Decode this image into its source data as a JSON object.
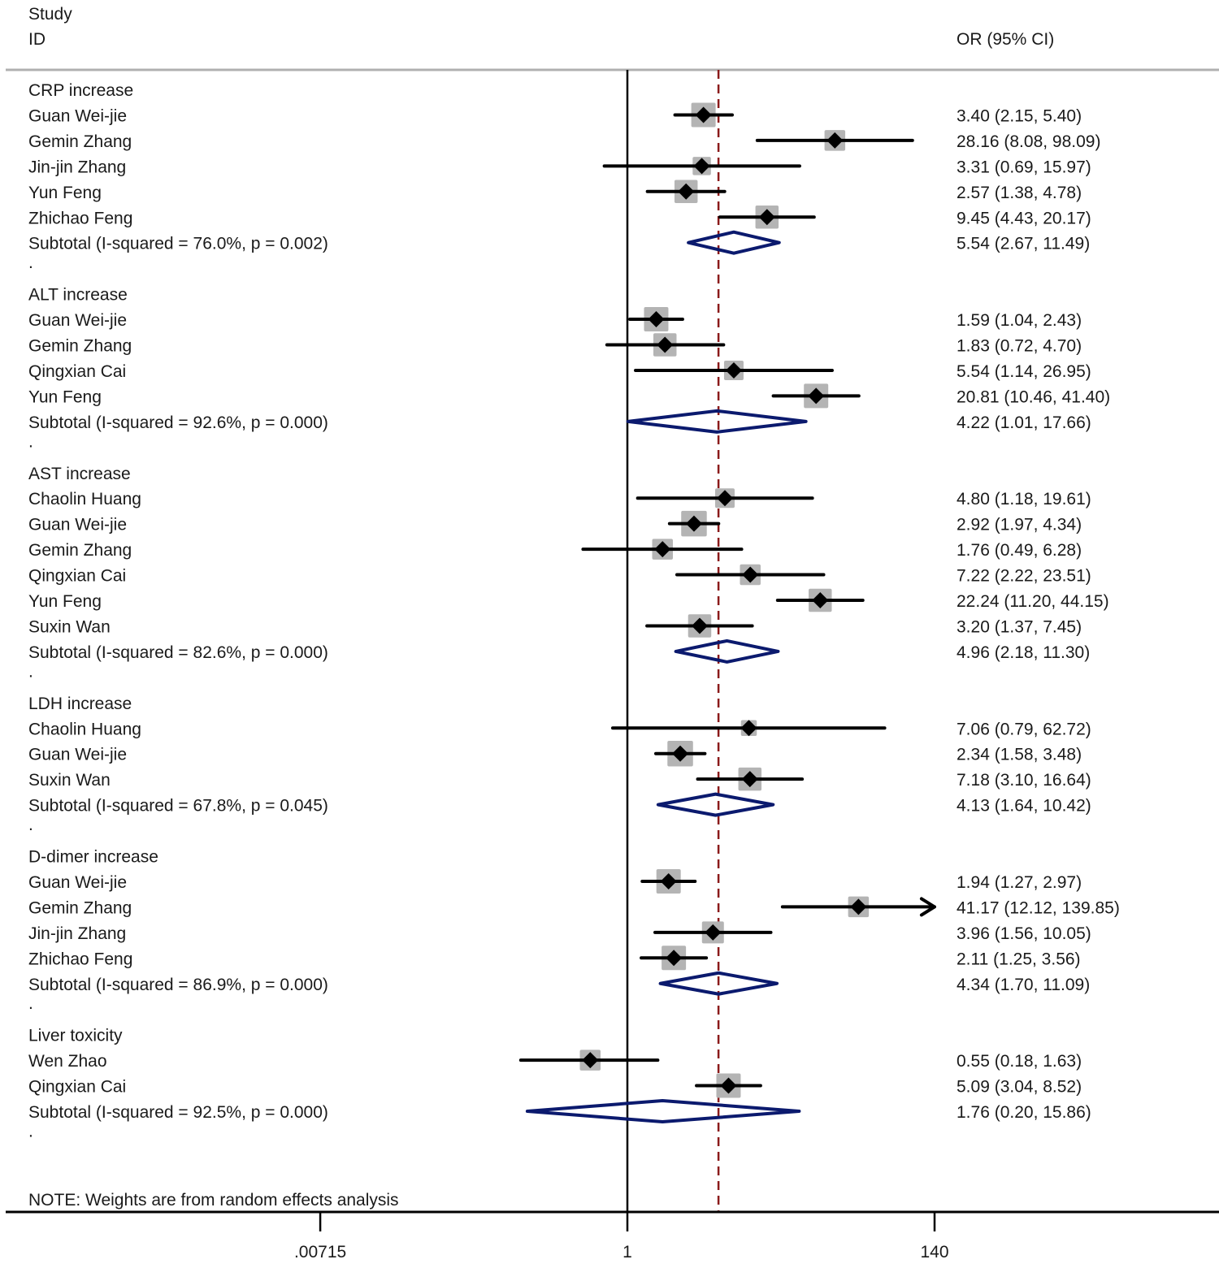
{
  "chart_data": {
    "type": "forest",
    "xscale": "log",
    "header": {
      "study_line1": "Study",
      "study_line2": "ID",
      "effect": "OR (95% CI)"
    },
    "x_ticks": [
      {
        "value": 0.00715,
        "label": ".00715"
      },
      {
        "value": 1,
        "label": "1"
      },
      {
        "value": 140,
        "label": "140"
      }
    ],
    "null_line": 1,
    "overall_line": 4.33,
    "note": "NOTE: Weights are from random effects analysis",
    "colors": {
      "marker": "#000000",
      "weight_box": "#b4b4b4",
      "diamond": "#0b1a6e",
      "overall_line": "#8b1a1a",
      "axis": "#000000",
      "header_rule": "#b0b0b0"
    },
    "groups": [
      {
        "name": "CRP increase",
        "studies": [
          {
            "id": "Guan Wei-jie",
            "or": 3.4,
            "lo": 2.15,
            "hi": 5.4,
            "text": "3.40 (2.15, 5.40)",
            "weight": 1.0
          },
          {
            "id": "Gemin Zhang",
            "or": 28.16,
            "lo": 8.08,
            "hi": 98.09,
            "text": "28.16 (8.08, 98.09)",
            "weight": 0.85
          },
          {
            "id": "Jin-jin Zhang",
            "or": 3.31,
            "lo": 0.69,
            "hi": 15.97,
            "text": "3.31 (0.69, 15.97)",
            "weight": 0.75
          },
          {
            "id": "Yun Feng",
            "or": 2.57,
            "lo": 1.38,
            "hi": 4.78,
            "text": "2.57 (1.38, 4.78)",
            "weight": 0.95
          },
          {
            "id": "Zhichao Feng",
            "or": 9.45,
            "lo": 4.43,
            "hi": 20.17,
            "text": "9.45 (4.43, 20.17)",
            "weight": 0.95
          }
        ],
        "subtotal": {
          "label": "Subtotal  (I-squared = 76.0%, p = 0.002)",
          "or": 5.54,
          "lo": 2.67,
          "hi": 11.49,
          "text": "5.54 (2.67, 11.49)"
        }
      },
      {
        "name": "ALT increase",
        "studies": [
          {
            "id": "Guan Wei-jie",
            "or": 1.59,
            "lo": 1.04,
            "hi": 2.43,
            "text": "1.59 (1.04, 2.43)",
            "weight": 1.0
          },
          {
            "id": "Gemin Zhang",
            "or": 1.83,
            "lo": 0.72,
            "hi": 4.7,
            "text": "1.83 (0.72, 4.70)",
            "weight": 0.95
          },
          {
            "id": "Qingxian Cai",
            "or": 5.54,
            "lo": 1.14,
            "hi": 26.95,
            "text": "5.54 (1.14, 26.95)",
            "weight": 0.8
          },
          {
            "id": "Yun Feng",
            "or": 20.81,
            "lo": 10.46,
            "hi": 41.4,
            "text": "20.81 (10.46, 41.40)",
            "weight": 1.0
          }
        ],
        "subtotal": {
          "label": "Subtotal  (I-squared = 92.6%, p = 0.000)",
          "or": 4.22,
          "lo": 1.01,
          "hi": 17.66,
          "text": "4.22 (1.01, 17.66)"
        }
      },
      {
        "name": "AST increase",
        "studies": [
          {
            "id": "Chaolin Huang",
            "or": 4.8,
            "lo": 1.18,
            "hi": 19.61,
            "text": "4.80 (1.18, 19.61)",
            "weight": 0.8
          },
          {
            "id": "Guan Wei-jie",
            "or": 2.92,
            "lo": 1.97,
            "hi": 4.34,
            "text": "2.92 (1.97, 4.34)",
            "weight": 1.05
          },
          {
            "id": "Gemin Zhang",
            "or": 1.76,
            "lo": 0.49,
            "hi": 6.28,
            "text": "1.76 (0.49, 6.28)",
            "weight": 0.85
          },
          {
            "id": "Qingxian Cai",
            "or": 7.22,
            "lo": 2.22,
            "hi": 23.51,
            "text": "7.22 (2.22, 23.51)",
            "weight": 0.85
          },
          {
            "id": "Yun Feng",
            "or": 22.24,
            "lo": 11.2,
            "hi": 44.15,
            "text": "22.24 (11.20, 44.15)",
            "weight": 0.95
          },
          {
            "id": "Suxin Wan",
            "or": 3.2,
            "lo": 1.37,
            "hi": 7.45,
            "text": "3.20 (1.37, 7.45)",
            "weight": 0.95
          }
        ],
        "subtotal": {
          "label": "Subtotal  (I-squared = 82.6%, p = 0.000)",
          "or": 4.96,
          "lo": 2.18,
          "hi": 11.3,
          "text": "4.96 (2.18, 11.30)"
        }
      },
      {
        "name": "LDH increase",
        "studies": [
          {
            "id": "Chaolin Huang",
            "or": 7.06,
            "lo": 0.79,
            "hi": 62.72,
            "text": "7.06 (0.79, 62.72)",
            "weight": 0.65
          },
          {
            "id": "Guan Wei-jie",
            "or": 2.34,
            "lo": 1.58,
            "hi": 3.48,
            "text": "2.34 (1.58, 3.48)",
            "weight": 1.05
          },
          {
            "id": "Suxin Wan",
            "or": 7.18,
            "lo": 3.1,
            "hi": 16.64,
            "text": "7.18 (3.10, 16.64)",
            "weight": 0.95
          }
        ],
        "subtotal": {
          "label": "Subtotal  (I-squared = 67.8%, p = 0.045)",
          "or": 4.13,
          "lo": 1.64,
          "hi": 10.42,
          "text": "4.13 (1.64, 10.42)"
        }
      },
      {
        "name": "D-dimer increase",
        "studies": [
          {
            "id": "Guan Wei-jie",
            "or": 1.94,
            "lo": 1.27,
            "hi": 2.97,
            "text": "1.94 (1.27, 2.97)",
            "weight": 1.0
          },
          {
            "id": "Gemin Zhang",
            "or": 41.17,
            "lo": 12.12,
            "hi": 139.85,
            "text": "41.17 (12.12, 139.85)",
            "weight": 0.85,
            "arrow_right": true
          },
          {
            "id": "Jin-jin Zhang",
            "or": 3.96,
            "lo": 1.56,
            "hi": 10.05,
            "text": "3.96 (1.56, 10.05)",
            "weight": 0.9
          },
          {
            "id": "Zhichao Feng",
            "or": 2.11,
            "lo": 1.25,
            "hi": 3.56,
            "text": "2.11 (1.25, 3.56)",
            "weight": 1.0
          }
        ],
        "subtotal": {
          "label": "Subtotal  (I-squared = 86.9%, p = 0.000)",
          "or": 4.34,
          "lo": 1.7,
          "hi": 11.09,
          "text": "4.34 (1.70, 11.09)"
        }
      },
      {
        "name": "Liver toxicity",
        "studies": [
          {
            "id": "Wen Zhao",
            "or": 0.55,
            "lo": 0.18,
            "hi": 1.63,
            "text": "0.55 (0.18, 1.63)",
            "weight": 0.85
          },
          {
            "id": "Qingxian Cai",
            "or": 5.09,
            "lo": 3.04,
            "hi": 8.52,
            "text": "5.09 (3.04, 8.52)",
            "weight": 1.0
          }
        ],
        "subtotal": {
          "label": "Subtotal  (I-squared = 92.5%, p = 0.000)",
          "or": 1.76,
          "lo": 0.2,
          "hi": 15.86,
          "text": "1.76 (0.20, 15.86)"
        }
      }
    ],
    "group_separator": "."
  }
}
